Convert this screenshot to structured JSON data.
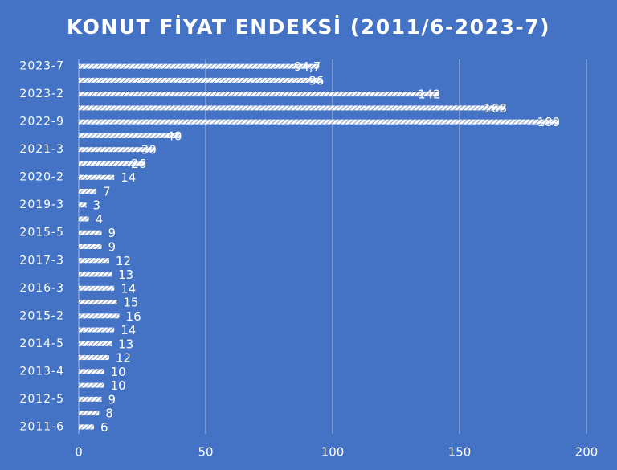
{
  "chart_data": {
    "type": "bar",
    "orientation": "horizontal",
    "title": "KONUT FİYAT ENDEKSİ (2011/6-2023-7)",
    "categories": [
      "2023-7",
      null,
      "2023-2",
      null,
      "2022-9",
      null,
      "2021-3",
      null,
      "2020-2",
      null,
      "2019-3",
      null,
      "2015-5",
      null,
      "2017-3",
      null,
      "2016-3",
      null,
      "2015-2",
      null,
      "2014-5",
      null,
      "2013-4",
      null,
      "2012-5",
      null,
      "2011-6"
    ],
    "values": [
      94.7,
      96,
      142,
      168,
      189,
      40,
      30,
      26,
      14,
      7,
      3,
      4,
      9,
      9,
      12,
      13,
      14,
      15,
      16,
      14,
      13,
      12,
      10,
      10,
      9,
      8,
      6
    ],
    "value_labels": [
      "94,7",
      "96",
      "142",
      "168",
      "189",
      "40",
      "30",
      "26",
      "14",
      "7",
      "3",
      "4",
      "9",
      "9",
      "12",
      "13",
      "14",
      "15",
      "16",
      "14",
      "13",
      "12",
      "10",
      "10",
      "9",
      "8",
      "6"
    ],
    "color": "#ffffff",
    "background": "#4472c4",
    "xlim": [
      0,
      200
    ],
    "xticks": [
      0,
      50,
      100,
      150,
      200
    ],
    "grid": true
  }
}
